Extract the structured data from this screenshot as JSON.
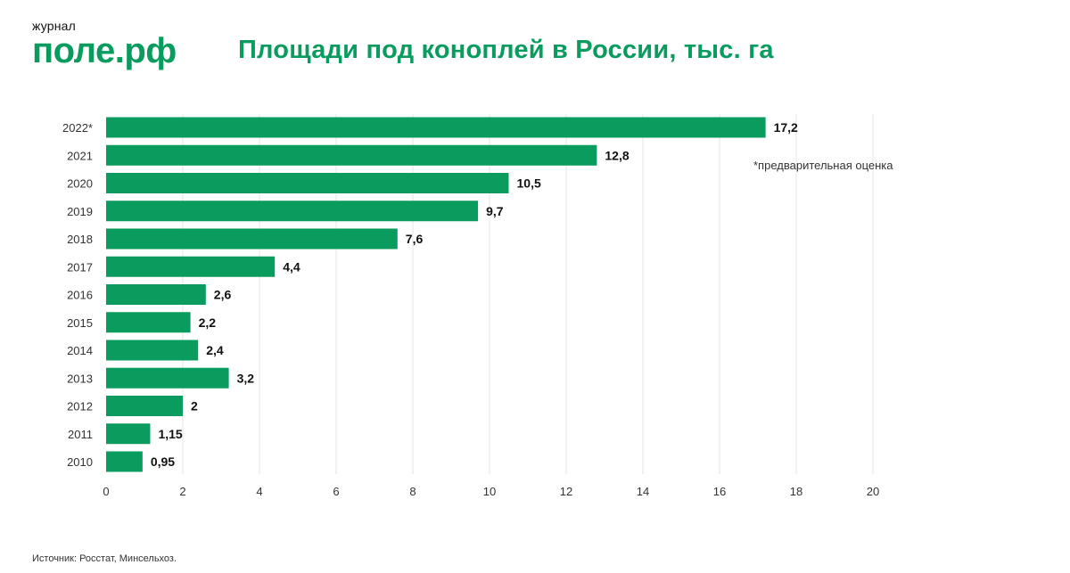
{
  "logo": {
    "small": "журнал",
    "big": "поле.рф"
  },
  "title": "Площади под коноплей в России, тыс. га",
  "footnote": "*предварительная оценка",
  "source": "Источник: Росстат, Минсельхоз.",
  "colors": {
    "bar": "#0a9b5f",
    "grid": "#e6e6e6",
    "title": "#0a9b5f"
  },
  "chart_data": {
    "type": "bar",
    "orientation": "horizontal",
    "categories": [
      "2022*",
      "2021",
      "2020",
      "2019",
      "2018",
      "2017",
      "2016",
      "2015",
      "2014",
      "2013",
      "2012",
      "2011",
      "2010"
    ],
    "values": [
      17.2,
      12.8,
      10.5,
      9.7,
      7.6,
      4.4,
      2.6,
      2.2,
      2.4,
      3.2,
      2,
      1.15,
      0.95
    ],
    "value_labels": [
      "17,2",
      "12,8",
      "10,5",
      "9,7",
      "7,6",
      "4,4",
      "2,6",
      "2,2",
      "2,4",
      "3,2",
      "2",
      "1,15",
      "0,95"
    ],
    "xlim": [
      0,
      20
    ],
    "xticks": [
      0,
      2,
      4,
      6,
      8,
      10,
      12,
      14,
      16,
      18,
      20
    ],
    "grid": true,
    "title": "Площади под коноплей в России, тыс. га"
  }
}
